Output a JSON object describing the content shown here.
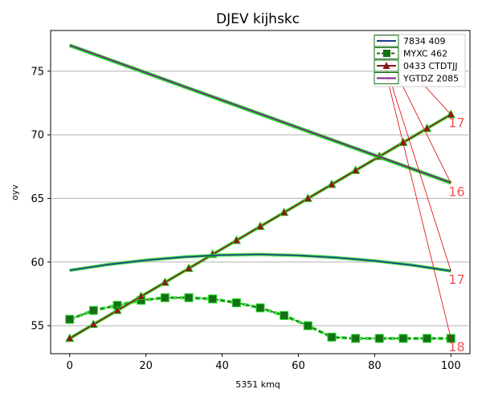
{
  "chart_data": {
    "type": "line",
    "title": "DJEV kijhskc",
    "xlabel": "5351 kmq",
    "ylabel": "oyv",
    "xlim": [
      -5,
      105
    ],
    "ylim": [
      52.8,
      78.2
    ],
    "xticks": [
      0,
      20,
      40,
      60,
      80,
      100
    ],
    "yticks": [
      55,
      60,
      65,
      70,
      75
    ],
    "grid": "horizontal",
    "legend_position": "top-right",
    "colors": {
      "highlight": "#22dd22",
      "annotation": "#dd0000",
      "end_label": "#ee5555"
    },
    "series": [
      {
        "name": "7834 409",
        "color": "#1f3d8c",
        "marker": "none",
        "x": [
          0,
          100
        ],
        "y": [
          77.0,
          66.2
        ]
      },
      {
        "name": "MYXC 462",
        "color": "#157015",
        "marker": "square",
        "dashed": true,
        "x": [
          0,
          6.25,
          12.5,
          18.75,
          25,
          31.25,
          37.5,
          43.75,
          50,
          56.25,
          62.5,
          68.75,
          75,
          81.25,
          87.5,
          93.75,
          100
        ],
        "y": [
          55.5,
          56.2,
          56.6,
          57.0,
          57.2,
          57.2,
          57.1,
          56.8,
          56.4,
          55.8,
          55.0,
          54.1,
          54.0,
          54.0,
          54.0,
          54.0,
          54.0
        ]
      },
      {
        "name": "0433 CTDTJJ",
        "color": "#8b1a1a",
        "marker": "triangle",
        "x": [
          0,
          6.25,
          12.5,
          18.75,
          25,
          31.25,
          37.5,
          43.75,
          50,
          56.25,
          62.5,
          68.75,
          75,
          81.25,
          87.5,
          93.75,
          100
        ],
        "y": [
          54.0,
          55.1,
          56.2,
          57.3,
          58.4,
          59.5,
          60.6,
          61.7,
          62.8,
          63.9,
          65.0,
          66.1,
          67.2,
          68.3,
          69.4,
          70.5,
          71.6
        ]
      },
      {
        "name": "YGTDZ 2085",
        "color": "#7a1f8c",
        "marker": "none",
        "x": [
          0,
          100
        ],
        "y": [
          77.05,
          66.25
        ]
      },
      {
        "name": "",
        "color": "#1f3d8c",
        "marker": "none",
        "curve": true,
        "x": [
          0,
          10,
          20,
          30,
          40,
          50,
          60,
          70,
          80,
          90,
          100
        ],
        "y": [
          59.35,
          59.8,
          60.15,
          60.4,
          60.55,
          60.6,
          60.52,
          60.35,
          60.1,
          59.75,
          59.3
        ]
      }
    ],
    "annotations": [
      {
        "text": "17",
        "x": 100,
        "y": 71.6
      },
      {
        "text": "16",
        "x": 100,
        "y": 66.2
      },
      {
        "text": "17",
        "x": 100,
        "y": 59.3
      },
      {
        "text": "18",
        "x": 100,
        "y": 54.0
      }
    ]
  }
}
